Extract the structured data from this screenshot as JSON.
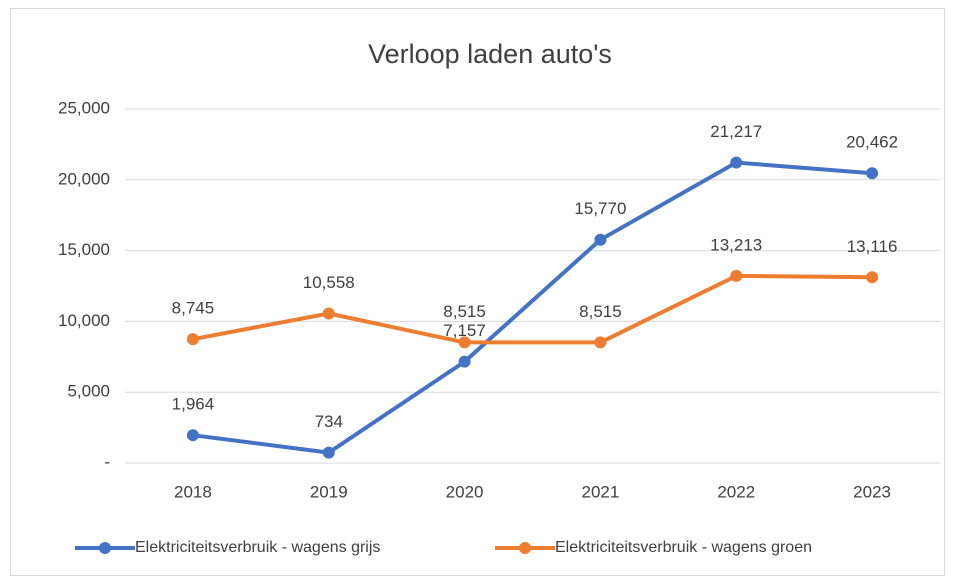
{
  "chart_data": {
    "type": "line",
    "title": "Verloop laden auto's",
    "categories": [
      "2018",
      "2019",
      "2020",
      "2021",
      "2022",
      "2023"
    ],
    "series": [
      {
        "name": "Elektriciteitsverbruik - wagens grijs",
        "color": "#4472c4",
        "values": [
          1964,
          734,
          7157,
          15770,
          21217,
          20462
        ],
        "value_labels": [
          "1,964",
          "734",
          "7,157",
          "15,770",
          "21,217",
          "20,462"
        ]
      },
      {
        "name": "Elektriciteitsverbruik - wagens groen",
        "color": "#ed7d31",
        "values": [
          8745,
          10558,
          8515,
          8515,
          13213,
          13116
        ],
        "value_labels": [
          "8,745",
          "10,558",
          "8,515",
          "8,515",
          "13,213",
          "13,116"
        ]
      }
    ],
    "ylim": [
      0,
      25000
    ],
    "yticks": [
      {
        "value": 0,
        "label": "-"
      },
      {
        "value": 5000,
        "label": "5,000"
      },
      {
        "value": 10000,
        "label": "10,000"
      },
      {
        "value": 15000,
        "label": "15,000"
      },
      {
        "value": 20000,
        "label": "20,000"
      },
      {
        "value": 25000,
        "label": "25,000"
      }
    ],
    "grid": true,
    "legend": "bottom"
  }
}
